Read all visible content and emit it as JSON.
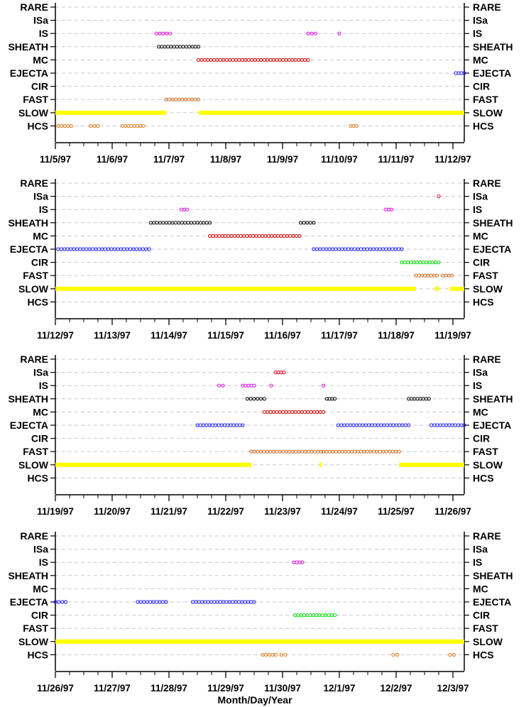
{
  "chart_data": {
    "type": "scatter",
    "xlabel": "Month/Day/Year",
    "categories": [
      "RARE",
      "ISa",
      "IS",
      "SHEATH",
      "MC",
      "EJECTA",
      "CIR",
      "FAST",
      "SLOW",
      "HCS"
    ],
    "colors": {
      "RARE": "#000000",
      "ISa": "#e8001c",
      "IS": "#e000e0",
      "SHEATH": "#000000",
      "MC": "#d40000",
      "EJECTA": "#1a1aff",
      "CIR": "#00dd00",
      "FAST": "#cc6a1a",
      "SLOW": "#ffff00",
      "HCS": "#e07a1a"
    },
    "grid": true,
    "panels": [
      {
        "ticks": [
          "11/5/97",
          "11/6/97",
          "11/7/97",
          "11/8/97",
          "11/9/97",
          "11/10/97",
          "11/11/97",
          "11/12/97"
        ],
        "xlim": [
          0,
          7.2
        ],
        "segments": [
          {
            "category": "IS",
            "x": [
              1.78,
              2.02
            ]
          },
          {
            "category": "IS",
            "x": [
              4.45,
              4.58
            ]
          },
          {
            "category": "IS",
            "x": [
              5.0,
              5.02
            ]
          },
          {
            "category": "SHEATH",
            "x": [
              1.82,
              2.52
            ]
          },
          {
            "category": "MC",
            "x": [
              2.52,
              4.45
            ]
          },
          {
            "category": "EJECTA",
            "x": [
              7.05,
              7.2
            ]
          },
          {
            "category": "FAST",
            "x": [
              1.95,
              2.52
            ]
          },
          {
            "category": "SLOW",
            "x": [
              0.0,
              1.95
            ]
          },
          {
            "category": "SLOW",
            "x": [
              2.52,
              7.2
            ]
          },
          {
            "category": "HCS",
            "x": [
              0.05,
              0.28
            ]
          },
          {
            "category": "HCS",
            "x": [
              0.62,
              0.75
            ]
          },
          {
            "category": "HCS",
            "x": [
              1.18,
              1.55
            ]
          },
          {
            "category": "HCS",
            "x": [
              5.2,
              5.3
            ]
          }
        ]
      },
      {
        "ticks": [
          "11/12/97",
          "11/13/97",
          "11/14/97",
          "11/15/97",
          "11/16/97",
          "11/17/97",
          "11/18/97",
          "11/19/97"
        ],
        "xlim": [
          0,
          7.2
        ],
        "segments": [
          {
            "category": "ISa",
            "x": [
              6.75,
              6.77
            ]
          },
          {
            "category": "IS",
            "x": [
              2.22,
              2.32
            ]
          },
          {
            "category": "IS",
            "x": [
              5.82,
              5.92
            ]
          },
          {
            "category": "SHEATH",
            "x": [
              1.68,
              2.72
            ]
          },
          {
            "category": "SHEATH",
            "x": [
              4.32,
              4.55
            ]
          },
          {
            "category": "MC",
            "x": [
              2.72,
              4.3
            ]
          },
          {
            "category": "EJECTA",
            "x": [
              0.05,
              1.65
            ]
          },
          {
            "category": "EJECTA",
            "x": [
              4.55,
              6.1
            ]
          },
          {
            "category": "CIR",
            "x": [
              6.1,
              6.75
            ]
          },
          {
            "category": "FAST",
            "x": [
              6.35,
              6.72
            ]
          },
          {
            "category": "FAST",
            "x": [
              6.82,
              6.98
            ]
          },
          {
            "category": "SLOW",
            "x": [
              0.0,
              6.35
            ]
          },
          {
            "category": "SLOW",
            "x": [
              6.68,
              6.75
            ]
          },
          {
            "category": "SLOW",
            "x": [
              6.95,
              7.2
            ]
          }
        ]
      },
      {
        "ticks": [
          "11/19/97",
          "11/20/97",
          "11/21/97",
          "11/22/97",
          "11/23/97",
          "11/24/97",
          "11/25/97",
          "11/26/97"
        ],
        "xlim": [
          0,
          7.2
        ],
        "segments": [
          {
            "category": "ISa",
            "x": [
              3.88,
              4.02
            ]
          },
          {
            "category": "IS",
            "x": [
              2.88,
              2.95
            ]
          },
          {
            "category": "IS",
            "x": [
              3.3,
              3.5
            ]
          },
          {
            "category": "IS",
            "x": [
              3.8,
              3.82
            ]
          },
          {
            "category": "IS",
            "x": [
              4.72,
              4.74
            ]
          },
          {
            "category": "SHEATH",
            "x": [
              3.38,
              3.68
            ]
          },
          {
            "category": "SHEATH",
            "x": [
              4.78,
              4.92
            ]
          },
          {
            "category": "SHEATH",
            "x": [
              6.22,
              6.58
            ]
          },
          {
            "category": "MC",
            "x": [
              3.68,
              4.72
            ]
          },
          {
            "category": "EJECTA",
            "x": [
              2.5,
              3.3
            ]
          },
          {
            "category": "EJECTA",
            "x": [
              4.98,
              6.22
            ]
          },
          {
            "category": "EJECTA",
            "x": [
              6.62,
              7.2
            ]
          },
          {
            "category": "FAST",
            "x": [
              3.45,
              4.68
            ]
          },
          {
            "category": "FAST",
            "x": [
              4.72,
              6.05
            ]
          },
          {
            "category": "SLOW",
            "x": [
              0.0,
              3.45
            ]
          },
          {
            "category": "SLOW",
            "x": [
              4.65,
              4.67
            ]
          },
          {
            "category": "SLOW",
            "x": [
              6.05,
              7.2
            ]
          }
        ]
      },
      {
        "ticks": [
          "11/26/97",
          "11/27/97",
          "11/28/97",
          "11/29/97",
          "11/30/97",
          "12/1/97",
          "12/2/97",
          "12/3/97"
        ],
        "xlim": [
          0,
          7.2
        ],
        "segments": [
          {
            "category": "IS",
            "x": [
              4.2,
              4.35
            ]
          },
          {
            "category": "EJECTA",
            "x": [
              0.0,
              0.18
            ]
          },
          {
            "category": "EJECTA",
            "x": [
              1.45,
              1.95
            ]
          },
          {
            "category": "EJECTA",
            "x": [
              2.42,
              3.5
            ]
          },
          {
            "category": "CIR",
            "x": [
              4.22,
              4.92
            ]
          },
          {
            "category": "SLOW",
            "x": [
              0.0,
              7.2
            ]
          },
          {
            "category": "HCS",
            "x": [
              3.65,
              3.88
            ]
          },
          {
            "category": "HCS",
            "x": [
              3.98,
              4.05
            ]
          },
          {
            "category": "HCS",
            "x": [
              5.95,
              6.02
            ]
          },
          {
            "category": "HCS",
            "x": [
              6.95,
              7.02
            ]
          }
        ]
      }
    ]
  }
}
